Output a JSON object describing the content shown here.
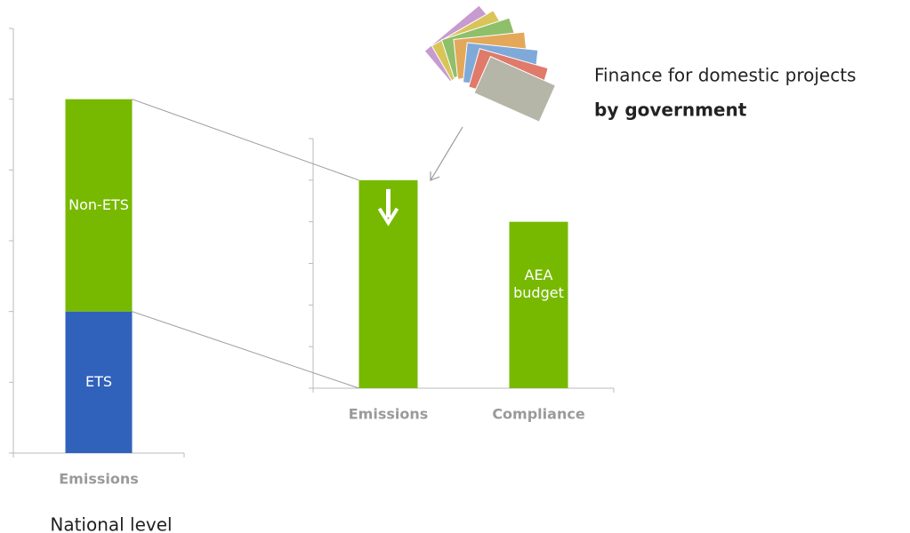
{
  "charts": {
    "national": {
      "type": "stacked_bar",
      "categories": [
        "Emissions"
      ],
      "series": [
        {
          "name": "ETS",
          "color": "#3061bb",
          "values": [
            2
          ]
        },
        {
          "name": "Non-ETS",
          "color": "#77b900",
          "values": [
            3
          ]
        }
      ],
      "ylim": [
        0,
        6
      ],
      "yticks": [
        0,
        1,
        2,
        3,
        4,
        5,
        6
      ],
      "caption": "National level"
    },
    "compliance": {
      "type": "bar",
      "categories": [
        "Emissions",
        "Compliance"
      ],
      "values": [
        5,
        4
      ],
      "color": "#77b900",
      "bar_label": "AEA budget",
      "ylim": [
        0,
        6
      ],
      "yticks": [
        0,
        1,
        2,
        3,
        4,
        5,
        6
      ]
    },
    "annotation": {
      "line1": "Finance for domestic projects",
      "line2": "by government"
    }
  }
}
